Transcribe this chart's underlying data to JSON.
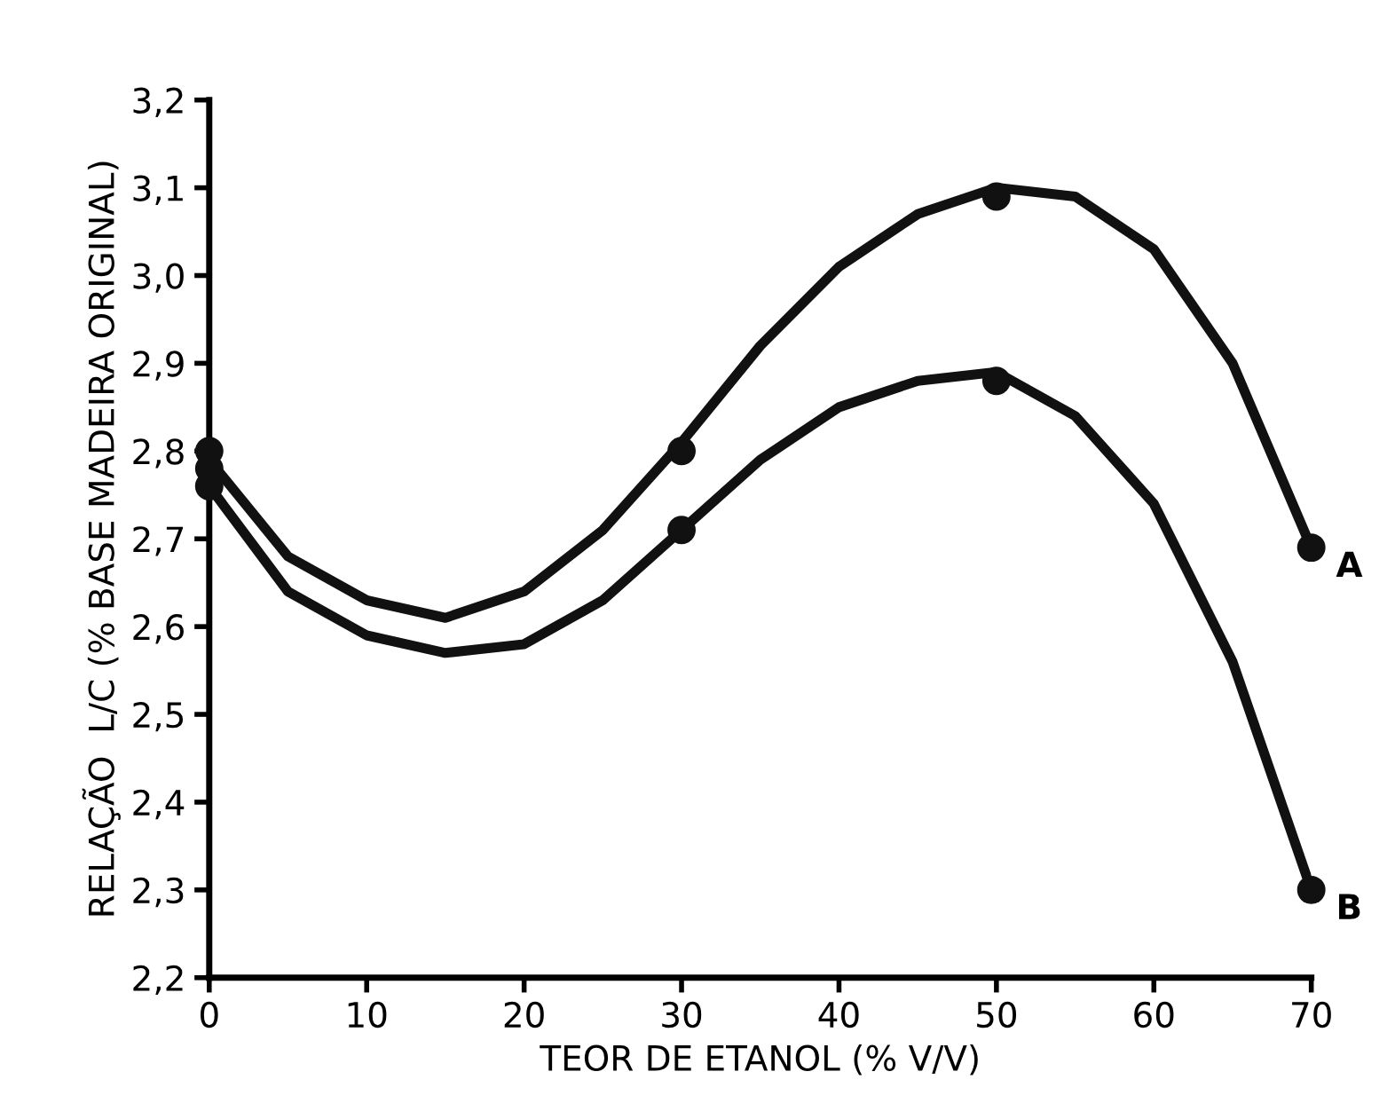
{
  "chart_data": {
    "type": "line",
    "xlabel": "TEOR DE ETANOL (% V/V)",
    "ylabel": "RELAÇÃO  L/C (% BASE MADEIRA ORIGINAL)",
    "xlim": [
      0,
      70
    ],
    "xticks": [
      0,
      10,
      20,
      30,
      40,
      50,
      60,
      70
    ],
    "ylim": [
      2.2,
      3.2
    ],
    "yticks": [
      {
        "value": 2.2,
        "label": "2,2"
      },
      {
        "value": 2.3,
        "label": "2,3"
      },
      {
        "value": 2.4,
        "label": "2,4"
      },
      {
        "value": 2.5,
        "label": "2,5"
      },
      {
        "value": 2.6,
        "label": "2,6"
      },
      {
        "value": 2.7,
        "label": "2,7"
      },
      {
        "value": 2.8,
        "label": "2,8"
      },
      {
        "value": 2.9,
        "label": "2,9"
      },
      {
        "value": 3.0,
        "label": "3,0"
      },
      {
        "value": 3.1,
        "label": "3,1"
      },
      {
        "value": 3.2,
        "label": "3,2"
      }
    ],
    "grid": false,
    "legend": false,
    "series": [
      {
        "name": "A",
        "color": "#111111",
        "marker": "none",
        "x": [
          0,
          5,
          10,
          15,
          20,
          25,
          30,
          35,
          40,
          45,
          50,
          55,
          60,
          65,
          70
        ],
        "values": [
          2.79,
          2.68,
          2.63,
          2.61,
          2.64,
          2.71,
          2.81,
          2.92,
          3.01,
          3.07,
          3.1,
          3.09,
          3.03,
          2.9,
          2.69
        ]
      },
      {
        "name": "B",
        "color": "#111111",
        "marker": "none",
        "x": [
          0,
          5,
          10,
          15,
          20,
          25,
          30,
          35,
          40,
          45,
          50,
          55,
          60,
          65,
          70
        ],
        "values": [
          2.76,
          2.64,
          2.59,
          2.57,
          2.58,
          2.63,
          2.71,
          2.79,
          2.85,
          2.88,
          2.89,
          2.84,
          2.74,
          2.56,
          2.3
        ]
      },
      {
        "type": "scatter",
        "color": "#111111",
        "marker": "circle",
        "x": [
          0,
          30,
          50,
          70
        ],
        "values": [
          2.8,
          2.8,
          3.09,
          2.69
        ]
      },
      {
        "type": "scatter",
        "color": "#111111",
        "marker": "circle",
        "x": [
          0,
          0,
          30,
          50,
          70
        ],
        "values": [
          2.76,
          2.78,
          2.71,
          2.88,
          2.3
        ]
      }
    ]
  }
}
